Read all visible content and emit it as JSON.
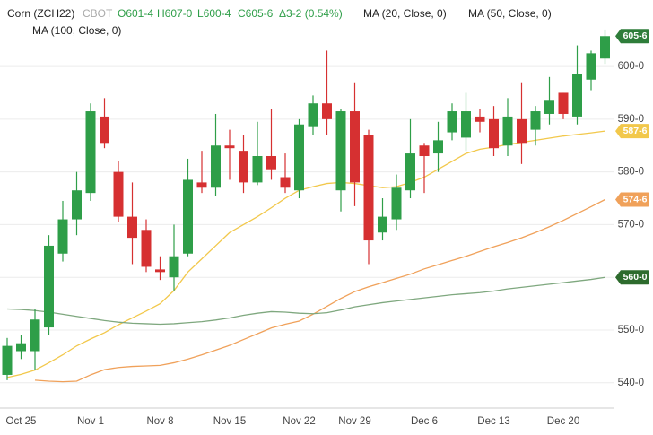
{
  "chart_data": {
    "type": "candlestick",
    "title": "Corn (ZCH22)",
    "exchange": "CBOT",
    "ohlc_labels": [
      "O601-4",
      "H607-0",
      "L600-4",
      "C605-6"
    ],
    "change_label": "Δ3-2 (0.54%)",
    "categories": [
      null,
      "Oct 25",
      null,
      null,
      null,
      null,
      "Nov 1",
      null,
      null,
      null,
      null,
      "Nov 8",
      null,
      null,
      null,
      null,
      "Nov 15",
      null,
      null,
      null,
      null,
      "Nov 22",
      null,
      null,
      null,
      "Nov 29",
      null,
      null,
      null,
      null,
      "Dec 6",
      null,
      null,
      null,
      null,
      "Dec 13",
      null,
      null,
      null,
      null,
      "Dec 20",
      null,
      null,
      null
    ],
    "open": [
      541.5,
      546,
      546,
      550.5,
      564.5,
      571,
      576,
      590.5,
      580,
      571.5,
      569,
      561.5,
      560,
      564.5,
      578,
      577,
      585,
      584,
      578,
      583,
      579,
      576.5,
      588.5,
      593,
      576.5,
      591.5,
      587,
      568.5,
      571,
      576.5,
      585,
      583.5,
      587.5,
      586.5,
      590.5,
      590,
      585,
      590,
      588,
      591,
      595,
      590.5,
      597.5,
      601.5
    ],
    "high": [
      548.5,
      549,
      554,
      568,
      574.5,
      580,
      593,
      594,
      582,
      578,
      571,
      564,
      570,
      582.5,
      584,
      591,
      588,
      587,
      589.5,
      592,
      583.5,
      590,
      594.5,
      603,
      592,
      597,
      588,
      575,
      579.5,
      590,
      585.5,
      589.5,
      593,
      595,
      592,
      592.5,
      594,
      597,
      592.5,
      598,
      595,
      604,
      603,
      607
    ],
    "low": [
      540.5,
      544.5,
      542.5,
      549,
      563,
      568,
      574.5,
      584.5,
      570.5,
      562.5,
      561,
      559.5,
      557.5,
      564,
      576,
      575.5,
      578.5,
      576,
      577.5,
      578.5,
      576,
      575,
      587,
      587,
      572.5,
      573.5,
      562.5,
      567,
      569,
      575,
      576,
      580,
      586,
      584,
      587.5,
      583,
      583,
      581.5,
      585,
      589,
      590,
      589,
      595.5,
      600.5
    ],
    "close": [
      547,
      547.5,
      552,
      566,
      571,
      576.5,
      591.5,
      585.5,
      571.5,
      567.5,
      562,
      561,
      564,
      578.5,
      577,
      585,
      584.5,
      578,
      583,
      580.5,
      577,
      589,
      593,
      590,
      591.5,
      578,
      567,
      571.5,
      577,
      583.5,
      583,
      586,
      591.5,
      591.5,
      589.5,
      584.5,
      590.5,
      585.5,
      591.5,
      593.5,
      591,
      598.5,
      602.5,
      605.75
    ],
    "up_color": "#2e9e48",
    "down_color": "#d63031",
    "last_tag": {
      "value": 605.75,
      "label": "605-6"
    },
    "series": [
      {
        "name": "MA (20, Close, 0)",
        "color": "#f2c84b",
        "last_tag": {
          "value": 587.75,
          "label": "587-6"
        },
        "values": [
          541,
          541.6,
          542.4,
          543.8,
          545.3,
          547,
          548.3,
          549.5,
          551,
          552.3,
          553.6,
          555,
          557.5,
          561,
          563.5,
          566,
          568.5,
          570,
          571.5,
          573.2,
          575,
          576.5,
          577.2,
          577.8,
          578,
          577.8,
          577.4,
          577,
          577.2,
          578,
          579,
          580.5,
          582,
          583.5,
          584.3,
          584.7,
          585.2,
          585.6,
          586,
          586.4,
          586.8,
          587.1,
          587.4,
          587.75
        ]
      },
      {
        "name": "MA (50, Close, 0)",
        "color": "#f0a15a",
        "last_tag": {
          "value": 574.75,
          "label": "574-6"
        },
        "values": [
          null,
          null,
          540.5,
          540.3,
          540.2,
          540.3,
          541.5,
          542.5,
          542.9,
          543.1,
          543.2,
          543.3,
          543.8,
          544.5,
          545.3,
          546.2,
          547.1,
          548.2,
          549.3,
          550.4,
          551.1,
          551.7,
          553,
          554.5,
          556,
          557.3,
          558.2,
          559,
          559.8,
          560.6,
          561.6,
          562.4,
          563.2,
          564,
          564.9,
          565.8,
          566.6,
          567.5,
          568.5,
          569.6,
          570.8,
          572.1,
          573.4,
          574.75
        ]
      },
      {
        "name": "MA (100, Close, 0)",
        "color": "#7fa87f",
        "last_tag": {
          "value": 560,
          "label": "560-0"
        },
        "values": [
          554,
          553.9,
          553.7,
          553.4,
          553,
          552.6,
          552.2,
          551.8,
          551.5,
          551.3,
          551.2,
          551.1,
          551.2,
          551.4,
          551.6,
          551.9,
          552.3,
          552.8,
          553.2,
          553.5,
          553.4,
          553.2,
          553.1,
          553.3,
          553.8,
          554.4,
          554.8,
          555.2,
          555.5,
          555.8,
          556.1,
          556.4,
          556.7,
          556.9,
          557.1,
          557.4,
          557.8,
          558.1,
          558.4,
          558.7,
          559,
          559.3,
          559.6,
          560
        ]
      }
    ],
    "ylim": [
      535.2,
      612.6
    ],
    "yticks": [
      {
        "value": 540,
        "label": "540-0"
      },
      {
        "value": 550,
        "label": "550-0"
      },
      {
        "value": 560,
        "label": "560-0"
      },
      {
        "value": 570,
        "label": "570-0"
      },
      {
        "value": 580,
        "label": "580-0"
      },
      {
        "value": 590,
        "label": "590-0"
      },
      {
        "value": 600,
        "label": "600-0"
      }
    ],
    "grid": true
  }
}
